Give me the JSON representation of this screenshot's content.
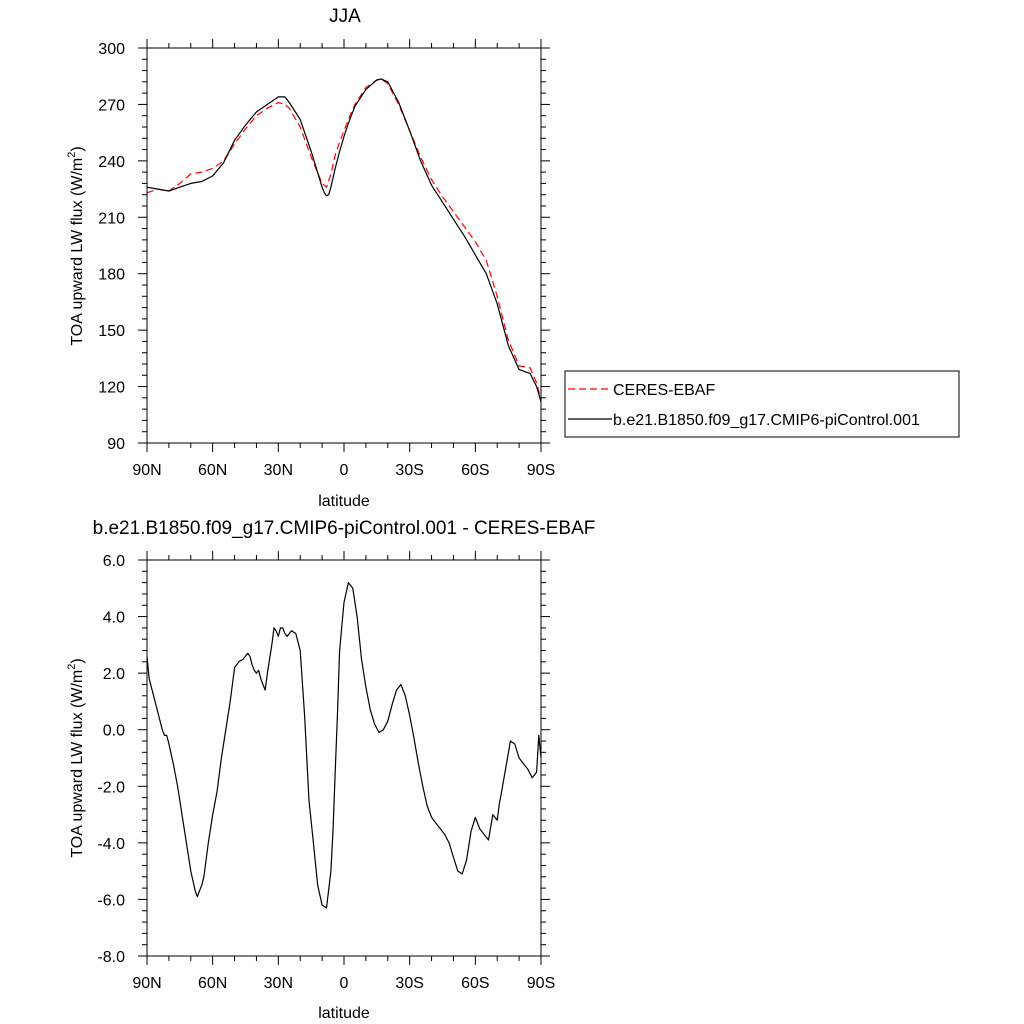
{
  "chart_data": [
    {
      "type": "line",
      "title": "JJA",
      "xlabel": "latitude",
      "ylabel": "TOA upward LW flux (W/m",
      "ylabel_sup": "2",
      "ylabel_close": ")",
      "xlim": [
        90,
        -90
      ],
      "ylim": [
        90,
        300
      ],
      "x_ticks": [
        90,
        60,
        30,
        0,
        -30,
        -60,
        -90
      ],
      "x_tick_labels": [
        "90N",
        "60N",
        "30N",
        "0",
        "30S",
        "60S",
        "90S"
      ],
      "y_ticks": [
        90,
        120,
        150,
        180,
        210,
        240,
        270,
        300
      ],
      "y_tick_labels": [
        "90",
        "120",
        "150",
        "180",
        "210",
        "240",
        "270",
        "300"
      ],
      "legend_position": "right",
      "series": [
        {
          "name": "CERES-EBAF",
          "style": "dashed",
          "color": "#ff0000",
          "x": [
            90,
            85,
            80,
            75,
            70,
            65,
            60,
            55,
            50,
            45,
            40,
            35,
            30,
            27,
            25,
            20,
            15,
            10,
            8,
            6,
            4,
            2,
            0,
            -2,
            -5,
            -10,
            -15,
            -17,
            -20,
            -25,
            -30,
            -35,
            -40,
            -45,
            -50,
            -55,
            -60,
            -65,
            -70,
            -75,
            -80,
            -85,
            -88,
            -90
          ],
          "values": [
            223,
            225,
            224,
            228,
            233,
            234,
            236,
            240,
            249,
            257,
            264,
            268,
            271,
            270,
            268,
            258,
            242,
            228,
            226,
            233,
            243,
            250,
            256,
            262,
            270,
            279,
            283,
            283.5,
            281,
            270,
            256,
            242,
            230,
            221,
            213,
            205,
            197,
            187,
            168,
            145,
            131,
            130,
            122,
            113
          ]
        },
        {
          "name": "b.e21.B1850.f09_g17.CMIP6-piControl.001",
          "style": "solid",
          "color": "#000000",
          "x": [
            90,
            85,
            80,
            75,
            70,
            65,
            60,
            55,
            50,
            45,
            40,
            35,
            30,
            27,
            25,
            20,
            15,
            10,
            9,
            8,
            7,
            6,
            4,
            2,
            0,
            -2,
            -5,
            -10,
            -15,
            -17,
            -20,
            -25,
            -30,
            -35,
            -40,
            -45,
            -50,
            -55,
            -60,
            -65,
            -70,
            -75,
            -80,
            -85,
            -88,
            -90
          ],
          "values": [
            226,
            225,
            224,
            226,
            228,
            229,
            232,
            239,
            251,
            259,
            266,
            270,
            274,
            274,
            271,
            262,
            245,
            226,
            223,
            221.5,
            222,
            226,
            236,
            245,
            253,
            260,
            269,
            278,
            283,
            283.5,
            282,
            271,
            256,
            240,
            227,
            218,
            209,
            200,
            190,
            180,
            164,
            142,
            129,
            127,
            120,
            112
          ]
        }
      ]
    },
    {
      "type": "line",
      "title": "b.e21.B1850.f09_g17.CMIP6-piControl.001 - CERES-EBAF",
      "xlabel": "latitude",
      "ylabel": "TOA upward LW flux (W/m",
      "ylabel_sup": "2",
      "ylabel_close": ")",
      "xlim": [
        90,
        -90
      ],
      "ylim": [
        -8,
        6
      ],
      "x_ticks": [
        90,
        60,
        30,
        0,
        -30,
        -60,
        -90
      ],
      "x_tick_labels": [
        "90N",
        "60N",
        "30N",
        "0",
        "30S",
        "60S",
        "90S"
      ],
      "y_ticks": [
        -8,
        -6,
        -4,
        -2,
        0,
        2,
        4,
        6
      ],
      "y_tick_labels": [
        "-8.0",
        "-6.0",
        "-4.0",
        "-2.0",
        "0.0",
        "2.0",
        "4.0",
        "6.0"
      ],
      "series": [
        {
          "style": "solid",
          "color": "#000000",
          "x": [
            90,
            89.5,
            89,
            88,
            87,
            86,
            84,
            83,
            82,
            81,
            80,
            78,
            76,
            74,
            72,
            70,
            68,
            67,
            66,
            65,
            64,
            62,
            60,
            58,
            56,
            54,
            52,
            50,
            48,
            46,
            44,
            43,
            42,
            41,
            40,
            39,
            38,
            37,
            36,
            35,
            34,
            33,
            32,
            31,
            30,
            29,
            28,
            27,
            26,
            25,
            24,
            22,
            20,
            18,
            16,
            14,
            12,
            10,
            8,
            6,
            5,
            4,
            3,
            2,
            0,
            -2,
            -4,
            -6,
            -8,
            -10,
            -12,
            -14,
            -16,
            -18,
            -20,
            -22,
            -24,
            -26,
            -28,
            -30,
            -32,
            -34,
            -36,
            -38,
            -40,
            -42,
            -44,
            -46,
            -48,
            -50,
            -52,
            -54,
            -56,
            -58,
            -60,
            -62,
            -64,
            -66,
            -68,
            -70,
            -71,
            -72,
            -74,
            -76,
            -78,
            -80,
            -82,
            -84,
            -86,
            -87,
            -88,
            -89,
            -90
          ],
          "values": [
            2.6,
            2.2,
            1.8,
            1.5,
            1.2,
            0.9,
            0.3,
            0.0,
            -0.2,
            -0.2,
            -0.5,
            -1.2,
            -2.0,
            -3.0,
            -4.0,
            -5.0,
            -5.7,
            -5.9,
            -5.7,
            -5.5,
            -5.2,
            -4.0,
            -3.0,
            -2.2,
            -1.0,
            0.0,
            1.0,
            2.2,
            2.4,
            2.5,
            2.7,
            2.6,
            2.3,
            2.1,
            2.0,
            2.1,
            1.8,
            1.6,
            1.4,
            2.0,
            2.5,
            3.0,
            3.6,
            3.5,
            3.3,
            3.6,
            3.6,
            3.4,
            3.3,
            3.4,
            3.5,
            3.4,
            2.8,
            0.5,
            -2.5,
            -4.0,
            -5.5,
            -6.2,
            -6.3,
            -5.0,
            -3.5,
            -1.5,
            0.5,
            2.8,
            4.5,
            5.2,
            5.0,
            4.0,
            2.5,
            1.5,
            0.7,
            0.2,
            -0.1,
            0.0,
            0.3,
            0.9,
            1.4,
            1.6,
            1.2,
            0.5,
            -0.3,
            -1.2,
            -2.0,
            -2.7,
            -3.1,
            -3.3,
            -3.5,
            -3.7,
            -4.0,
            -4.5,
            -5.0,
            -5.1,
            -4.6,
            -3.6,
            -3.1,
            -3.5,
            -3.7,
            -3.9,
            -3.0,
            -3.2,
            -2.6,
            -2.2,
            -1.3,
            -0.4,
            -0.5,
            -1.0,
            -1.2,
            -1.4,
            -1.7,
            -1.6,
            -1.5,
            -0.2,
            -1.0
          ]
        }
      ]
    }
  ]
}
